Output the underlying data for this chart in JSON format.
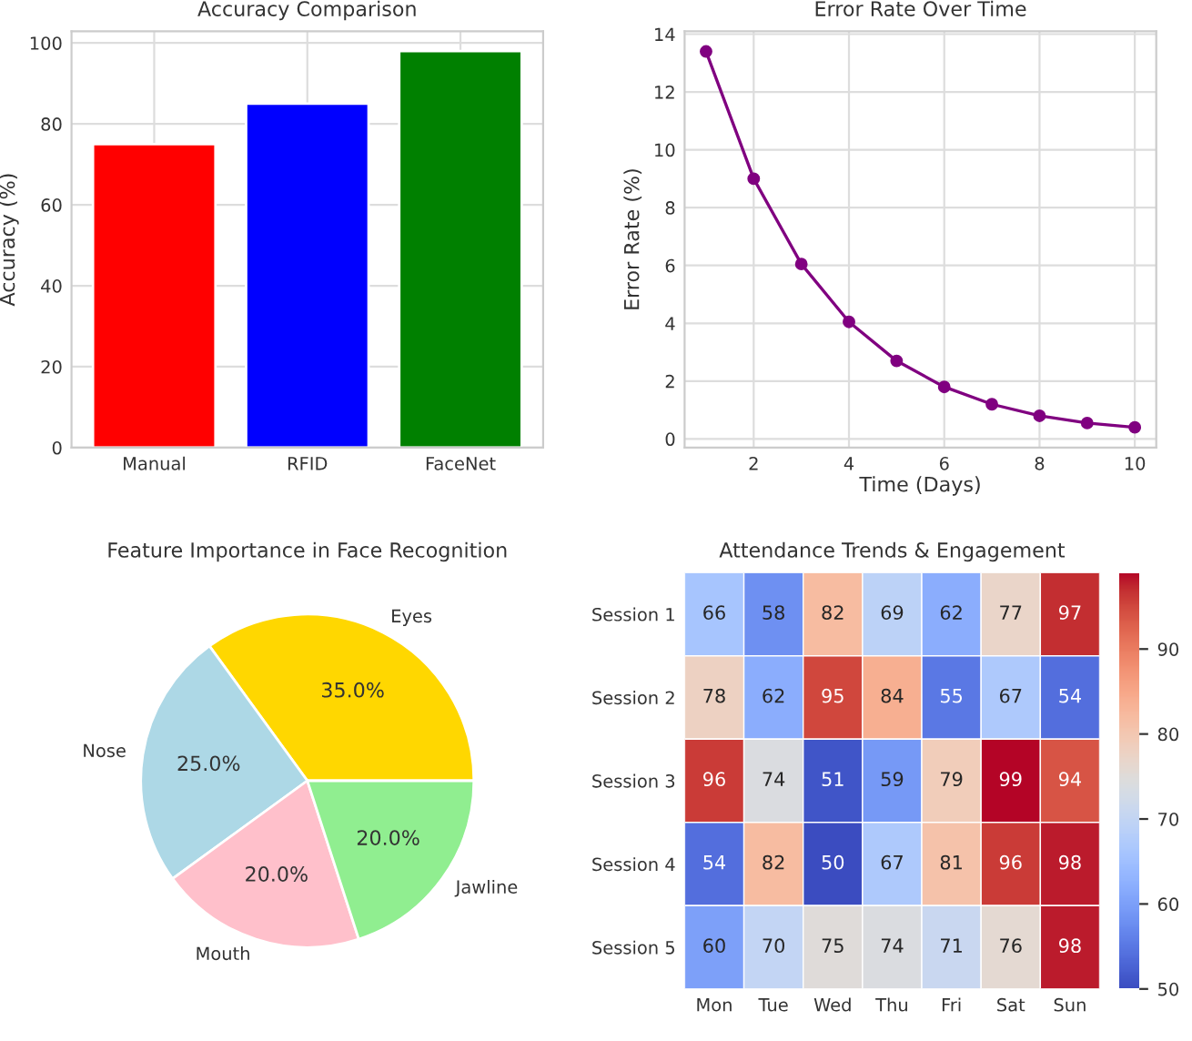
{
  "chart_data": [
    {
      "type": "bar",
      "title": "Accuracy Comparison",
      "ylabel": "Accuracy (%)",
      "categories": [
        "Manual",
        "RFID",
        "FaceNet"
      ],
      "values": [
        75,
        85,
        98
      ],
      "colors": [
        "#ff0000",
        "#0000ff",
        "#008000"
      ],
      "ylim": [
        0,
        102.9
      ],
      "yticks": [
        0,
        20,
        40,
        60,
        80,
        100
      ],
      "grid": true
    },
    {
      "type": "line",
      "title": "Error Rate Over Time",
      "xlabel": "Time (Days)",
      "ylabel": "Error Rate (%)",
      "x": [
        1,
        2,
        3,
        4,
        5,
        6,
        7,
        8,
        9,
        10
      ],
      "series": [
        {
          "color": "#800080",
          "values": [
            13.4,
            9.0,
            6.05,
            4.05,
            2.7,
            1.8,
            1.2,
            0.8,
            0.55,
            0.4
          ]
        }
      ],
      "xlim": [
        0.55,
        10.45
      ],
      "xticks": [
        2,
        4,
        6,
        8,
        10
      ],
      "ylim": [
        -0.3,
        14.1
      ],
      "yticks": [
        0,
        2,
        4,
        6,
        8,
        10,
        12,
        14
      ],
      "grid": true,
      "marker": "circle",
      "line_style": "solid"
    },
    {
      "type": "pie",
      "title": "Feature Importance in Face Recognition",
      "categories": [
        "Eyes",
        "Nose",
        "Mouth",
        "Jawline"
      ],
      "values": [
        35,
        25,
        20,
        20
      ],
      "colors": [
        "#ffd700",
        "#add8e6",
        "#ffc0cb",
        "#90ee90"
      ],
      "value_labels": [
        "35.0%",
        "25.0%",
        "20.0%",
        "20.0%"
      ]
    },
    {
      "type": "heatmap",
      "title": "Attendance Trends & Engagement",
      "categories": [
        "Mon",
        "Tue",
        "Wed",
        "Thu",
        "Fri",
        "Sat",
        "Sun"
      ],
      "y_categories": [
        "Session 1",
        "Session 2",
        "Session 3",
        "Session 4",
        "Session 5"
      ],
      "cells": [
        [
          66,
          58,
          82,
          69,
          62,
          77,
          97
        ],
        [
          78,
          62,
          95,
          84,
          55,
          67,
          54
        ],
        [
          96,
          74,
          51,
          59,
          79,
          99,
          94
        ],
        [
          54,
          82,
          50,
          67,
          81,
          96,
          98
        ],
        [
          60,
          70,
          75,
          74,
          71,
          76,
          98
        ]
      ],
      "clim": [
        50,
        99
      ],
      "cticks": [
        50,
        60,
        70,
        80,
        90
      ],
      "data_labels": true
    }
  ]
}
